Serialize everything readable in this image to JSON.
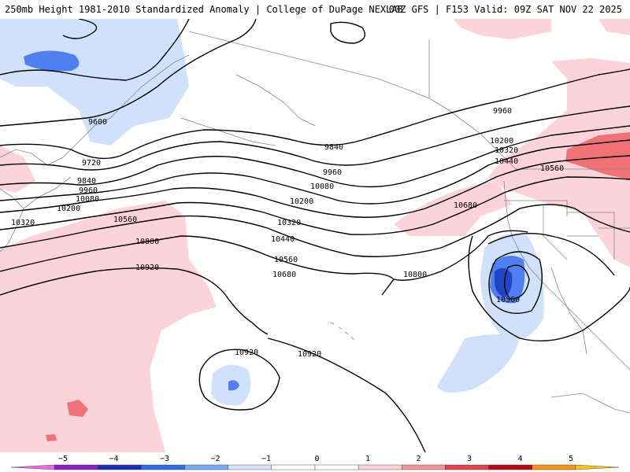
{
  "header": {
    "title_left": "250mb Height 1981-2010 Standardized Anomaly | College of DuPage NEXLAB",
    "title_right": "00Z GFS | F153 Valid: 09Z SAT NOV 22 2025"
  },
  "colors": {
    "land_line": "#888888",
    "contour": "#000000",
    "anom_neg1": "#cce0fb",
    "anom_neg2": "#4f7ff0",
    "anom_neg3": "#1d45c4",
    "anom_pos1": "#fbd2d6",
    "anom_pos2": "#f07276"
  },
  "contour_labels": [
    {
      "name": "label-9600-west",
      "text": "9600"
    },
    {
      "name": "label-9720-west",
      "text": "9720"
    },
    {
      "name": "label-9840-west",
      "text": "9840"
    },
    {
      "name": "label-9960-west",
      "text": "9960"
    },
    {
      "name": "label-10080-west",
      "text": "10080"
    },
    {
      "name": "label-10200-west",
      "text": "10200"
    },
    {
      "name": "label-10320-west",
      "text": "10320"
    },
    {
      "name": "label-10560-west",
      "text": "10560"
    },
    {
      "name": "label-10800-west",
      "text": "10800"
    },
    {
      "name": "label-10920-west",
      "text": "10920"
    },
    {
      "name": "label-9840-mid",
      "text": "9840"
    },
    {
      "name": "label-9960-mid",
      "text": "9960"
    },
    {
      "name": "label-10080-mid",
      "text": "10080"
    },
    {
      "name": "label-10200-mid",
      "text": "10200"
    },
    {
      "name": "label-10320-mid",
      "text": "10320"
    },
    {
      "name": "label-10440-mid",
      "text": "10440"
    },
    {
      "name": "label-10560-mid",
      "text": "10560"
    },
    {
      "name": "label-10680-mid",
      "text": "10680"
    },
    {
      "name": "label-10800-mid",
      "text": "10800"
    },
    {
      "name": "label-9960-east",
      "text": "9960"
    },
    {
      "name": "label-10200-east",
      "text": "10200"
    },
    {
      "name": "label-10320-east",
      "text": "10320"
    },
    {
      "name": "label-10440-east",
      "text": "10440"
    },
    {
      "name": "label-10560-east",
      "text": "10560"
    },
    {
      "name": "label-10680-east",
      "text": "10680"
    },
    {
      "name": "label-10560-low",
      "text": "10560"
    },
    {
      "name": "label-10920-south",
      "text": "10920"
    },
    {
      "name": "label-10920-southmid",
      "text": "10920"
    }
  ],
  "legend": {
    "ticks": [
      "−5",
      "−4",
      "−3",
      "−2",
      "−1",
      "0",
      "1",
      "2",
      "3",
      "4",
      "5"
    ],
    "bins": [
      {
        "color": "#e76be6"
      },
      {
        "color": "#8a1fc6"
      },
      {
        "color": "#1a2fb3"
      },
      {
        "color": "#2f6ee6"
      },
      {
        "color": "#7aa7f2"
      },
      {
        "color": "#d2e3fb"
      },
      {
        "color": "#ffffff"
      },
      {
        "color": "#ffffff"
      },
      {
        "color": "#fbd3d8"
      },
      {
        "color": "#f3959a"
      },
      {
        "color": "#e5434a"
      },
      {
        "color": "#b40c15"
      },
      {
        "color": "#f7941d"
      },
      {
        "color": "#f8c21b"
      }
    ]
  }
}
